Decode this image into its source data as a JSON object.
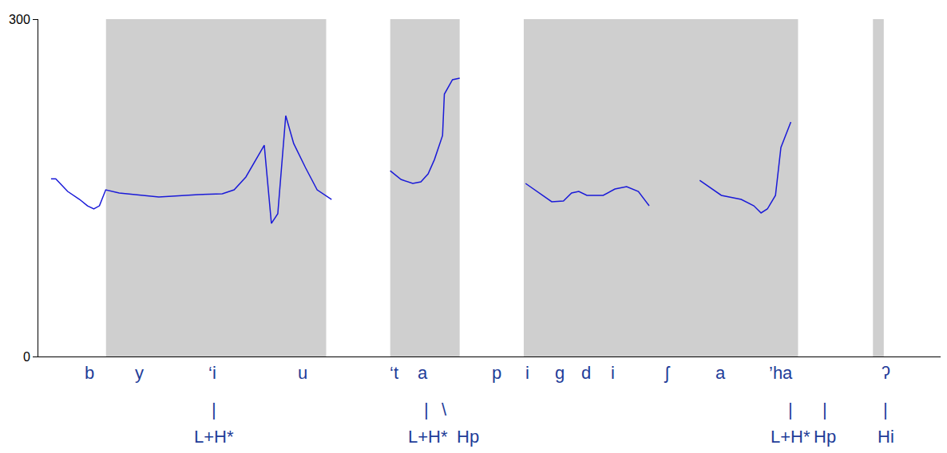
{
  "chart_data": {
    "type": "line",
    "xlim": [
      0,
      100
    ],
    "ylim": [
      0,
      300
    ],
    "yticks": [
      0,
      300
    ],
    "tick_labels": "y",
    "grid": false,
    "color": "#1a1ad8",
    "x": [
      1.41,
      1.93,
      3.25,
      4.57,
      5.45,
      6.15,
      6.77,
      7.47,
      8.96,
      13.36,
      17.75,
      20.39,
      21.7,
      23.0,
      25.04,
      25.83,
      26.54,
      27.42,
      28.3,
      29.6,
      30.9,
      32.5,
      35.0,
      39.0,
      40.2,
      41.5,
      42.4,
      43.2,
      43.9,
      44.8,
      45.0,
      45.9,
      46.7,
      50.0,
      54.0,
      55.5,
      56.9,
      58.2,
      59.1,
      59.9,
      60.8,
      62.6,
      63.9,
      65.2,
      66.5,
      67.7,
      70.0,
      73.3,
      74.4,
      75.7,
      77.9,
      79.3,
      80.1,
      80.8,
      81.7,
      82.3,
      83.4
    ],
    "values": [
      158,
      158,
      146.8,
      139.7,
      134,
      131.2,
      134,
      148.2,
      145.4,
      141.8,
      144,
      144.7,
      148.2,
      159.6,
      187.9,
      118.4,
      127,
      214.2,
      189.4,
      168.1,
      148.2,
      139.7,
      null,
      165.2,
      157.4,
      153.9,
      155.3,
      162.4,
      175.1,
      196.5,
      233.3,
      246.1,
      247.5,
      null,
      153.9,
      145.4,
      137.6,
      138.3,
      145.4,
      146.8,
      143.3,
      143.3,
      148.9,
      151.1,
      146.8,
      134,
      null,
      156.7,
      150.4,
      143.3,
      139.7,
      134,
      127.7,
      131.2,
      143.3,
      185.8,
      208.5
    ],
    "spectrogram": [
      {
        "start": 7.5,
        "end": 31.9
      },
      {
        "start": 39.0,
        "end": 46.7
      },
      {
        "start": 53.8,
        "end": 84.2
      },
      {
        "start": 92.5,
        "end": 93.7
      }
    ],
    "segment_labels": [
      {
        "x": 5.7,
        "label": "b"
      },
      {
        "x": 11.2,
        "label": "y"
      },
      {
        "x": 19.3,
        "label": "‘i"
      },
      {
        "x": 29.3,
        "label": "u"
      },
      {
        "x": 39.4,
        "label": "‘t"
      },
      {
        "x": 42.6,
        "label": "a"
      },
      {
        "x": 50.8,
        "label": "p"
      },
      {
        "x": 54.2,
        "label": "i"
      },
      {
        "x": 57.8,
        "label": "g"
      },
      {
        "x": 60.7,
        "label": "d"
      },
      {
        "x": 63.7,
        "label": "i"
      },
      {
        "x": 69.7,
        "label": "ʃ"
      },
      {
        "x": 75.6,
        "label": "a"
      },
      {
        "x": 82.3,
        "label": "’ha"
      },
      {
        "x": 93.9,
        "label": "ʔ"
      }
    ],
    "tone_labels": [
      {
        "x": 19.5,
        "label": "L+H*",
        "connector_x": 19.5,
        "connector": "|"
      },
      {
        "x": 43.2,
        "label": "L+H*",
        "connector_x": 43.0,
        "connector": "|"
      },
      {
        "x": 47.6,
        "label": "Hp",
        "connector_x": 45.0,
        "connector": "\\"
      },
      {
        "x": 83.4,
        "label": "L+H*",
        "connector_x": 83.4,
        "connector": "|"
      },
      {
        "x": 87.2,
        "label": "Hp",
        "connector_x": 87.2,
        "connector": "|"
      },
      {
        "x": 93.9,
        "label": "Hi",
        "connector_x": 93.9,
        "connector": "|"
      }
    ]
  }
}
